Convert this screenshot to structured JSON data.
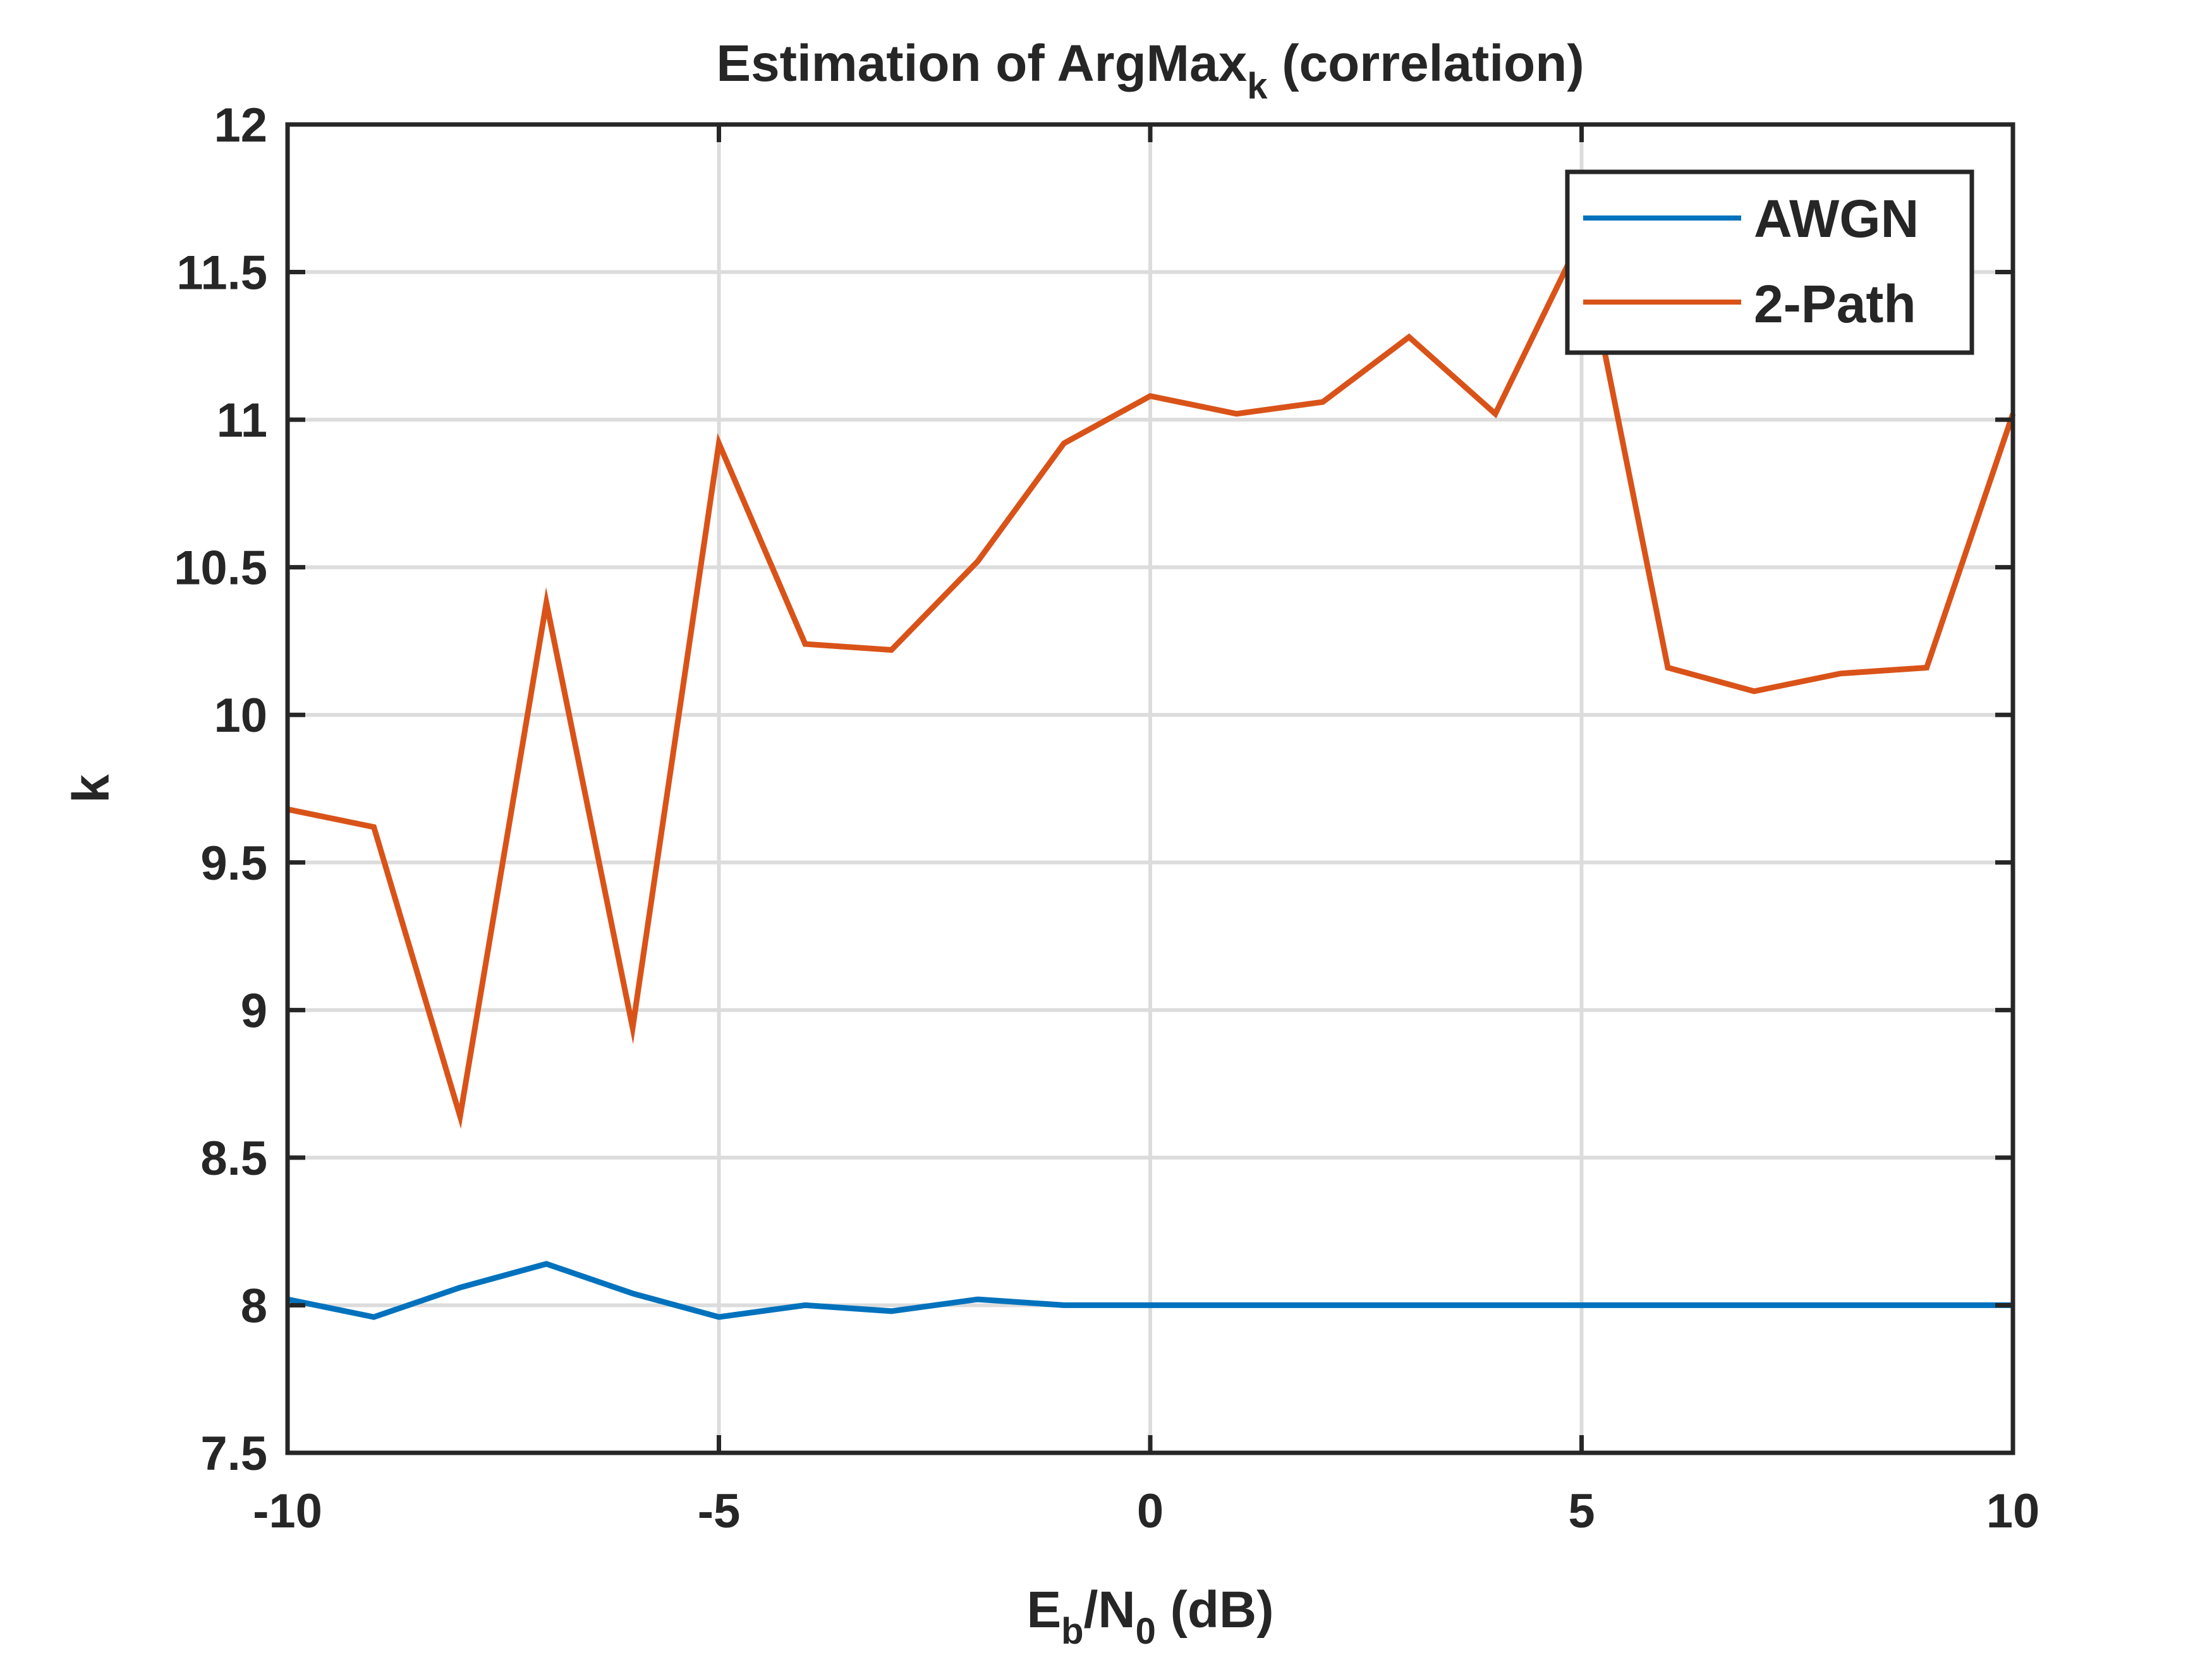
{
  "chart_data": {
    "type": "line",
    "title": "Estimation of ArgMax",
    "title_subscript": "k",
    "title_suffix": " (correlation)",
    "xlabel": {
      "main1": "E",
      "sub1": "b",
      "main2": "/N",
      "sub2": "0",
      "main3": " (dB)"
    },
    "ylabel": "k",
    "xlim": [
      -10,
      10
    ],
    "ylim": [
      7.5,
      12
    ],
    "xticks": [
      -10,
      -5,
      0,
      5,
      10
    ],
    "yticks": [
      7.5,
      8,
      8.5,
      9,
      9.5,
      10,
      10.5,
      11,
      11.5,
      12
    ],
    "xtick_labels": [
      "-10",
      "-5",
      "0",
      "5",
      "10"
    ],
    "ytick_labels": [
      "7.5",
      "8",
      "8.5",
      "9",
      "9.5",
      "10",
      "10.5",
      "11",
      "11.5",
      "12"
    ],
    "grid": true,
    "legend_position": "top-right",
    "x": [
      -10,
      -9,
      -8,
      -7,
      -6,
      -5,
      -4,
      -3,
      -2,
      -1,
      0,
      1,
      2,
      3,
      4,
      5,
      6,
      7,
      8,
      9,
      10
    ],
    "series": [
      {
        "name": "AWGN",
        "color": "#0072BD",
        "values": [
          8.02,
          7.96,
          8.06,
          8.14,
          8.04,
          7.96,
          8.0,
          7.98,
          8.02,
          8.0,
          8.0,
          8.0,
          8.0,
          8.0,
          8.0,
          8.0,
          8.0,
          8.0,
          8.0,
          8.0,
          8.0
        ]
      },
      {
        "name": "2-Path",
        "color": "#D95319",
        "values": [
          9.68,
          9.62,
          8.64,
          10.38,
          8.94,
          10.92,
          10.24,
          10.22,
          10.52,
          10.92,
          11.08,
          11.02,
          11.06,
          11.28,
          11.02,
          11.62,
          10.16,
          10.08,
          10.14,
          10.16,
          11.02
        ]
      }
    ]
  }
}
